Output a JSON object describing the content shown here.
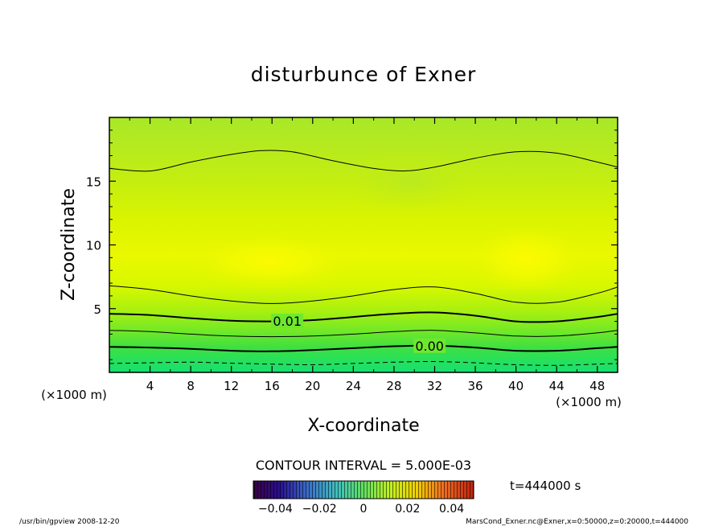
{
  "chart_data": {
    "type": "heatmap",
    "title": "disturbunce of Exner",
    "xlabel": "X-coordinate",
    "ylabel": "Z-coordinate",
    "x_unit": "(×1000 m)",
    "y_unit": "(×1000 m)",
    "xlim": [
      0,
      50
    ],
    "ylim": [
      0,
      20
    ],
    "x_ticks": [
      4,
      8,
      12,
      16,
      20,
      24,
      28,
      32,
      36,
      40,
      44,
      48
    ],
    "y_ticks": [
      5,
      10,
      15
    ],
    "contour_interval_label": "CONTOUR INTERVAL = 5.000E-03",
    "time_label": "t=444000 s",
    "colorbar": {
      "range": [
        -0.05,
        0.05
      ],
      "tick_values": [
        -0.04,
        -0.02,
        0,
        0.02,
        0.04
      ],
      "tick_labels": [
        "−0.04",
        "−0.02",
        "0",
        "0.02",
        "0.04"
      ]
    },
    "contours": [
      {
        "level": -0.005,
        "style": "dashed",
        "label": "",
        "points": [
          [
            0,
            0.7
          ],
          [
            4,
            0.75
          ],
          [
            8,
            0.8
          ],
          [
            12,
            0.72
          ],
          [
            16,
            0.65
          ],
          [
            20,
            0.6
          ],
          [
            24,
            0.7
          ],
          [
            28,
            0.8
          ],
          [
            32,
            0.85
          ],
          [
            36,
            0.75
          ],
          [
            40,
            0.6
          ],
          [
            44,
            0.55
          ],
          [
            48,
            0.65
          ],
          [
            50,
            0.7
          ]
        ]
      },
      {
        "level": 0.0,
        "style": "bold",
        "label": "0.00",
        "label_x": 31.5,
        "points": [
          [
            0,
            2.0
          ],
          [
            4,
            1.95
          ],
          [
            8,
            1.85
          ],
          [
            12,
            1.7
          ],
          [
            16,
            1.65
          ],
          [
            20,
            1.75
          ],
          [
            24,
            1.9
          ],
          [
            28,
            2.05
          ],
          [
            32,
            2.1
          ],
          [
            36,
            1.95
          ],
          [
            40,
            1.7
          ],
          [
            44,
            1.7
          ],
          [
            48,
            1.9
          ],
          [
            50,
            2.0
          ]
        ]
      },
      {
        "level": 0.005,
        "style": "thin",
        "label": "",
        "points": [
          [
            0,
            3.3
          ],
          [
            4,
            3.2
          ],
          [
            8,
            3.0
          ],
          [
            12,
            2.85
          ],
          [
            16,
            2.8
          ],
          [
            20,
            2.85
          ],
          [
            24,
            3.0
          ],
          [
            28,
            3.2
          ],
          [
            32,
            3.3
          ],
          [
            36,
            3.1
          ],
          [
            40,
            2.85
          ],
          [
            44,
            2.85
          ],
          [
            48,
            3.1
          ],
          [
            50,
            3.3
          ]
        ]
      },
      {
        "level": 0.01,
        "style": "bold",
        "label": "0.01",
        "label_x": 17.5,
        "points": [
          [
            0,
            4.6
          ],
          [
            4,
            4.5
          ],
          [
            8,
            4.25
          ],
          [
            12,
            4.05
          ],
          [
            16,
            4.0
          ],
          [
            20,
            4.1
          ],
          [
            24,
            4.35
          ],
          [
            28,
            4.6
          ],
          [
            32,
            4.7
          ],
          [
            36,
            4.45
          ],
          [
            40,
            4.0
          ],
          [
            44,
            4.0
          ],
          [
            48,
            4.35
          ],
          [
            50,
            4.6
          ]
        ]
      },
      {
        "level": 0.015,
        "style": "thin",
        "label": "",
        "points": [
          [
            0,
            6.8
          ],
          [
            4,
            6.5
          ],
          [
            8,
            6.0
          ],
          [
            12,
            5.6
          ],
          [
            16,
            5.4
          ],
          [
            20,
            5.6
          ],
          [
            24,
            6.0
          ],
          [
            28,
            6.5
          ],
          [
            32,
            6.7
          ],
          [
            36,
            6.2
          ],
          [
            40,
            5.5
          ],
          [
            44,
            5.5
          ],
          [
            48,
            6.2
          ],
          [
            50,
            6.7
          ]
        ]
      },
      {
        "level": 0.015,
        "style": "thin",
        "label": "",
        "points": [
          [
            0,
            16.0
          ],
          [
            4,
            15.8
          ],
          [
            8,
            16.5
          ],
          [
            12,
            17.1
          ],
          [
            15,
            17.4
          ],
          [
            18,
            17.3
          ],
          [
            22,
            16.6
          ],
          [
            26,
            16.0
          ],
          [
            29,
            15.8
          ],
          [
            32,
            16.1
          ],
          [
            36,
            16.8
          ],
          [
            40,
            17.3
          ],
          [
            44,
            17.2
          ],
          [
            48,
            16.5
          ],
          [
            50,
            16.1
          ]
        ]
      }
    ]
  },
  "footer": {
    "left": "/usr/bin/gpview   2008-12-20",
    "right": "MarsCond_Exner.nc@Exner,x=0:50000,z=0:20000,t=444000"
  }
}
